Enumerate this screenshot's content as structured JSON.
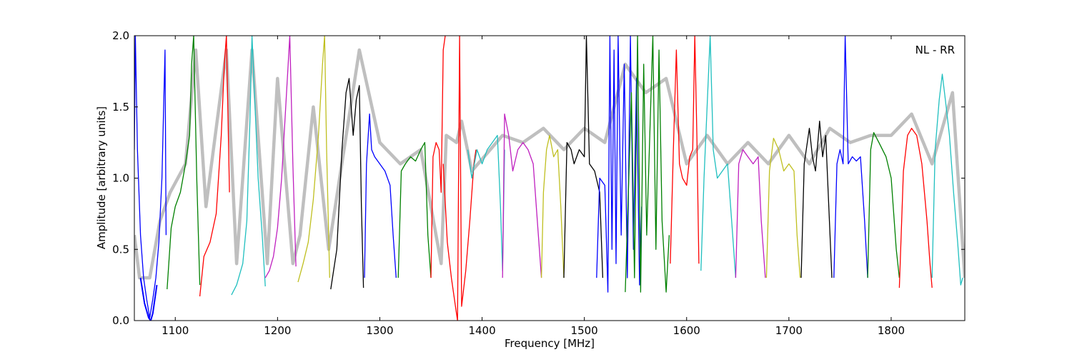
{
  "chart_data": {
    "type": "line",
    "annotation": "NL - RR",
    "xlabel": "Frequency [MHz]",
    "ylabel": "Amplitude [arbitrary units]",
    "xlim": [
      1060,
      1872
    ],
    "ylim": [
      0.0,
      2.0
    ],
    "xticks": [
      1100,
      1200,
      1300,
      1400,
      1500,
      1600,
      1700,
      1800
    ],
    "xtick_labels": [
      "1100",
      "1200",
      "1300",
      "1400",
      "1500",
      "1600",
      "1700",
      "1800"
    ],
    "yticks": [
      0.0,
      0.5,
      1.0,
      1.5,
      2.0
    ],
    "ytick_labels": [
      "0.0",
      "0.5",
      "1.0",
      "1.5",
      "2.0"
    ],
    "grid": false,
    "colors": {
      "blue": "#0000ff",
      "green": "#008000",
      "red": "#ff0000",
      "cyan": "#1fbfbf",
      "magenta": "#bf1fbf",
      "olive": "#bfbf1f",
      "black": "#000000",
      "gray": "#bfbfbf"
    },
    "series": [
      {
        "color": "gray",
        "width": 4.5,
        "x": [
          1060,
          1065,
          1075,
          1085,
          1095,
          1110,
          1120,
          1130,
          1150,
          1160,
          1175,
          1190,
          1200,
          1215,
          1222,
          1235,
          1250,
          1280,
          1300,
          1320,
          1340,
          1360,
          1365,
          1375,
          1380,
          1390,
          1420,
          1440,
          1460,
          1480,
          1500,
          1520,
          1540,
          1560,
          1580,
          1600,
          1620,
          1640,
          1660,
          1680,
          1700,
          1720,
          1740,
          1760,
          1780,
          1800,
          1820,
          1840,
          1860,
          1872
        ],
        "y": [
          0.6,
          0.3,
          0.3,
          0.7,
          0.9,
          1.1,
          1.9,
          0.8,
          1.9,
          0.4,
          1.9,
          0.4,
          1.7,
          0.4,
          0.6,
          1.5,
          0.5,
          1.9,
          1.25,
          1.1,
          1.2,
          0.4,
          1.3,
          1.25,
          1.4,
          1.05,
          1.3,
          1.25,
          1.35,
          1.2,
          1.35,
          1.25,
          1.8,
          1.6,
          1.7,
          1.1,
          1.3,
          1.1,
          1.25,
          1.1,
          1.3,
          1.1,
          1.35,
          1.25,
          1.3,
          1.3,
          1.45,
          1.1,
          1.6,
          0.3
        ]
      },
      {
        "color": "blue",
        "width": 1.3,
        "x": [
          1060,
          1061,
          1063,
          1066,
          1069,
          1072,
          1075,
          1078,
          1081,
          1084,
          1087,
          1090,
          1091
        ],
        "y": [
          1.2,
          2.0,
          1.2,
          0.6,
          0.3,
          0.15,
          0.02,
          0.15,
          0.3,
          0.55,
          1.0,
          1.9,
          0.6
        ]
      },
      {
        "color": "blue",
        "width": 2.0,
        "x": [
          1066,
          1070,
          1074,
          1076,
          1078,
          1082
        ],
        "y": [
          0.3,
          0.12,
          0.02,
          0.0,
          0.05,
          0.25
        ]
      },
      {
        "color": "green",
        "width": 1.3,
        "x": [
          1092,
          1096,
          1100,
          1105,
          1110,
          1114,
          1116,
          1118,
          1121,
          1124
        ],
        "y": [
          0.22,
          0.65,
          0.8,
          0.9,
          1.1,
          1.3,
          1.8,
          2.0,
          1.0,
          0.25
        ]
      },
      {
        "color": "red",
        "width": 1.3,
        "x": [
          1124,
          1128,
          1134,
          1140,
          1145,
          1148,
          1150,
          1153
        ],
        "y": [
          0.17,
          0.45,
          0.55,
          0.75,
          1.3,
          1.8,
          2.0,
          0.9
        ]
      },
      {
        "color": "cyan",
        "width": 1.3,
        "x": [
          1155,
          1160,
          1166,
          1170,
          1173,
          1175,
          1178,
          1181,
          1185,
          1188
        ],
        "y": [
          0.18,
          0.25,
          0.4,
          0.7,
          1.4,
          2.0,
          1.5,
          1.0,
          0.6,
          0.24
        ]
      },
      {
        "color": "magenta",
        "width": 1.3,
        "x": [
          1188,
          1192,
          1196,
          1200,
          1204,
          1208,
          1212,
          1215,
          1218
        ],
        "y": [
          0.3,
          0.35,
          0.45,
          0.65,
          1.0,
          1.5,
          2.0,
          1.1,
          0.38
        ]
      },
      {
        "color": "olive",
        "width": 1.3,
        "x": [
          1220,
          1225,
          1230,
          1235,
          1240,
          1244,
          1246,
          1248,
          1251
        ],
        "y": [
          0.27,
          0.4,
          0.55,
          0.85,
          1.3,
          1.8,
          2.0,
          1.2,
          0.3
        ]
      },
      {
        "color": "black",
        "width": 1.3,
        "x": [
          1252,
          1258,
          1263,
          1267,
          1270,
          1274,
          1277,
          1280,
          1282,
          1284
        ],
        "y": [
          0.22,
          0.5,
          1.2,
          1.6,
          1.7,
          1.3,
          1.55,
          1.65,
          0.8,
          0.23
        ]
      },
      {
        "color": "blue",
        "width": 1.3,
        "x": [
          1285,
          1287,
          1290,
          1292,
          1295,
          1300,
          1305,
          1310,
          1313,
          1316
        ],
        "y": [
          0.3,
          1.1,
          1.45,
          1.2,
          1.15,
          1.1,
          1.05,
          0.95,
          0.6,
          0.3
        ]
      },
      {
        "color": "green",
        "width": 1.3,
        "x": [
          1318,
          1321,
          1325,
          1330,
          1335,
          1340,
          1344,
          1347,
          1350
        ],
        "y": [
          0.3,
          1.05,
          1.1,
          1.15,
          1.12,
          1.2,
          1.25,
          0.6,
          0.3
        ]
      },
      {
        "color": "red",
        "width": 1.3,
        "x": [
          1350,
          1352,
          1355,
          1358,
          1360,
          1362,
          1364
        ],
        "y": [
          0.3,
          1.15,
          1.25,
          1.2,
          0.9,
          1.9,
          2.0
        ]
      },
      {
        "color": "red",
        "width": 1.3,
        "x": [
          1362,
          1366,
          1370,
          1374,
          1376,
          1378,
          1380,
          1384,
          1388,
          1392,
          1394
        ],
        "y": [
          1.1,
          0.55,
          0.3,
          0.1,
          0.0,
          2.0,
          0.1,
          0.35,
          0.7,
          1.1,
          1.2
        ]
      },
      {
        "color": "cyan",
        "width": 1.3,
        "x": [
          1386,
          1390,
          1395,
          1400,
          1405,
          1410,
          1415,
          1418,
          1420,
          1422
        ],
        "y": [
          1.2,
          1.0,
          1.2,
          1.1,
          1.2,
          1.25,
          1.3,
          0.8,
          0.35,
          1.2
        ]
      },
      {
        "color": "magenta",
        "width": 1.3,
        "x": [
          1420,
          1422,
          1426,
          1430,
          1435,
          1440,
          1445,
          1450,
          1455,
          1458
        ],
        "y": [
          0.3,
          1.45,
          1.3,
          1.05,
          1.2,
          1.25,
          1.2,
          1.1,
          0.6,
          0.3
        ]
      },
      {
        "color": "olive",
        "width": 1.3,
        "x": [
          1458,
          1460,
          1463,
          1466,
          1470,
          1474,
          1477,
          1480
        ],
        "y": [
          0.3,
          0.9,
          1.2,
          1.3,
          1.15,
          1.2,
          0.8,
          0.3
        ]
      },
      {
        "color": "black",
        "width": 1.3,
        "x": [
          1480,
          1483,
          1487,
          1490,
          1495,
          1500,
          1502,
          1505,
          1510,
          1515,
          1518
        ],
        "y": [
          0.3,
          1.25,
          1.2,
          1.1,
          1.2,
          1.15,
          2.0,
          1.1,
          1.05,
          0.9,
          0.3
        ]
      },
      {
        "color": "blue",
        "width": 1.3,
        "x": [
          1512,
          1515,
          1520,
          1523,
          1525,
          1527,
          1529,
          1531,
          1533,
          1536,
          1539,
          1542,
          1545,
          1548,
          1551,
          1554,
          1556
        ],
        "y": [
          0.3,
          1.0,
          0.95,
          0.2,
          2.0,
          0.5,
          1.9,
          0.4,
          2.0,
          0.6,
          1.8,
          0.3,
          2.0,
          0.5,
          1.7,
          0.25,
          0.8
        ]
      },
      {
        "color": "green",
        "width": 1.3,
        "x": [
          1540,
          1543,
          1546,
          1549,
          1552,
          1555,
          1558,
          1561,
          1564,
          1567,
          1570,
          1573,
          1576,
          1580,
          1583
        ],
        "y": [
          0.2,
          0.9,
          1.6,
          0.3,
          2.0,
          0.2,
          1.8,
          0.6,
          1.3,
          2.0,
          0.5,
          1.9,
          0.7,
          0.2,
          0.6
        ]
      },
      {
        "color": "red",
        "width": 1.3,
        "x": [
          1584,
          1587,
          1590,
          1593,
          1596,
          1600,
          1603,
          1606,
          1608,
          1610,
          1612
        ],
        "y": [
          0.4,
          1.2,
          1.9,
          1.1,
          1.0,
          0.95,
          1.15,
          1.2,
          2.0,
          1.3,
          0.4
        ]
      },
      {
        "color": "cyan",
        "width": 1.3,
        "x": [
          1614,
          1617,
          1620,
          1623,
          1626,
          1630,
          1635,
          1640,
          1645,
          1648
        ],
        "y": [
          0.35,
          1.0,
          1.5,
          2.0,
          1.2,
          1.0,
          1.05,
          1.1,
          0.6,
          0.3
        ]
      },
      {
        "color": "magenta",
        "width": 1.3,
        "x": [
          1648,
          1651,
          1655,
          1660,
          1665,
          1670,
          1673,
          1677
        ],
        "y": [
          0.3,
          1.1,
          1.2,
          1.15,
          1.1,
          1.15,
          0.7,
          0.3
        ]
      },
      {
        "color": "olive",
        "width": 1.3,
        "x": [
          1678,
          1681,
          1685,
          1690,
          1695,
          1700,
          1705,
          1708,
          1711
        ],
        "y": [
          0.3,
          1.05,
          1.28,
          1.2,
          1.05,
          1.1,
          1.05,
          0.6,
          0.3
        ]
      },
      {
        "color": "black",
        "width": 1.3,
        "x": [
          1712,
          1715,
          1720,
          1723,
          1726,
          1730,
          1733,
          1736,
          1739,
          1742
        ],
        "y": [
          0.3,
          1.1,
          1.35,
          1.15,
          1.05,
          1.4,
          1.15,
          1.3,
          0.8,
          0.3
        ]
      },
      {
        "color": "blue",
        "width": 1.3,
        "x": [
          1744,
          1747,
          1750,
          1753,
          1755,
          1758,
          1762,
          1766,
          1770,
          1774,
          1777
        ],
        "y": [
          0.3,
          1.1,
          1.2,
          1.1,
          2.0,
          1.1,
          1.15,
          1.12,
          1.15,
          0.7,
          0.3
        ]
      },
      {
        "color": "green",
        "width": 1.3,
        "x": [
          1777,
          1780,
          1783,
          1788,
          1795,
          1800,
          1805,
          1808
        ],
        "y": [
          0.3,
          1.2,
          1.32,
          1.25,
          1.15,
          1.0,
          0.5,
          0.3
        ]
      },
      {
        "color": "red",
        "width": 1.3,
        "x": [
          1808,
          1812,
          1816,
          1820,
          1825,
          1830,
          1835,
          1838,
          1840
        ],
        "y": [
          0.23,
          1.05,
          1.3,
          1.35,
          1.3,
          1.1,
          0.7,
          0.4,
          0.23
        ]
      },
      {
        "color": "cyan",
        "width": 1.3,
        "x": [
          1840,
          1843,
          1847,
          1850,
          1853,
          1857,
          1861,
          1865,
          1868,
          1870
        ],
        "y": [
          0.3,
          1.2,
          1.55,
          1.73,
          1.55,
          1.3,
          0.9,
          0.55,
          0.25,
          0.3
        ]
      }
    ]
  }
}
